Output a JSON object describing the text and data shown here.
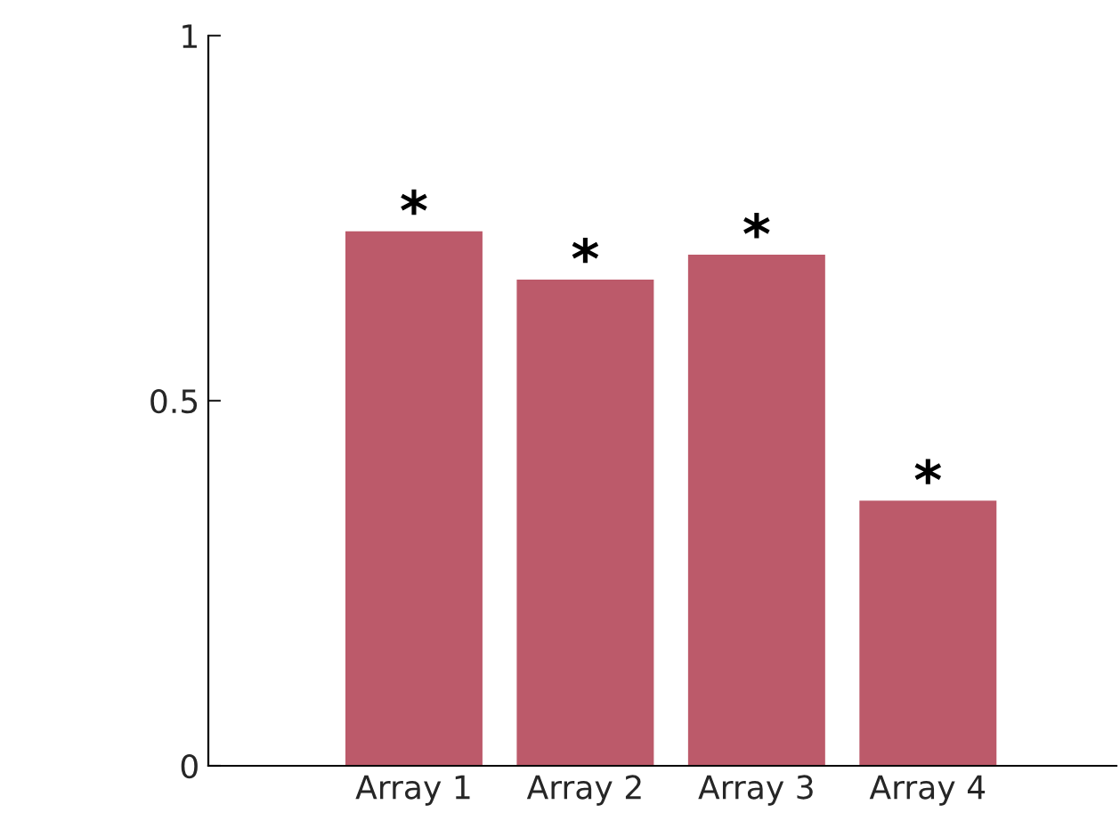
{
  "chart_data": {
    "type": "bar",
    "categories": [
      "Array 1",
      "Array 2",
      "Array 3",
      "Array 4"
    ],
    "values": [
      0.732,
      0.666,
      0.7,
      0.363
    ],
    "color": "#bc5a6a",
    "ylim": [
      0,
      1
    ],
    "yticks": [
      0,
      0.5,
      1
    ],
    "grid": false,
    "legend": false,
    "annotations": [
      {
        "text": "*",
        "x": "Array 1",
        "y": 0.732
      },
      {
        "text": "*",
        "x": "Array 2",
        "y": 0.666
      },
      {
        "text": "*",
        "x": "Array 3",
        "y": 0.7
      },
      {
        "text": "*",
        "x": "Array 4",
        "y": 0.363
      }
    ]
  }
}
